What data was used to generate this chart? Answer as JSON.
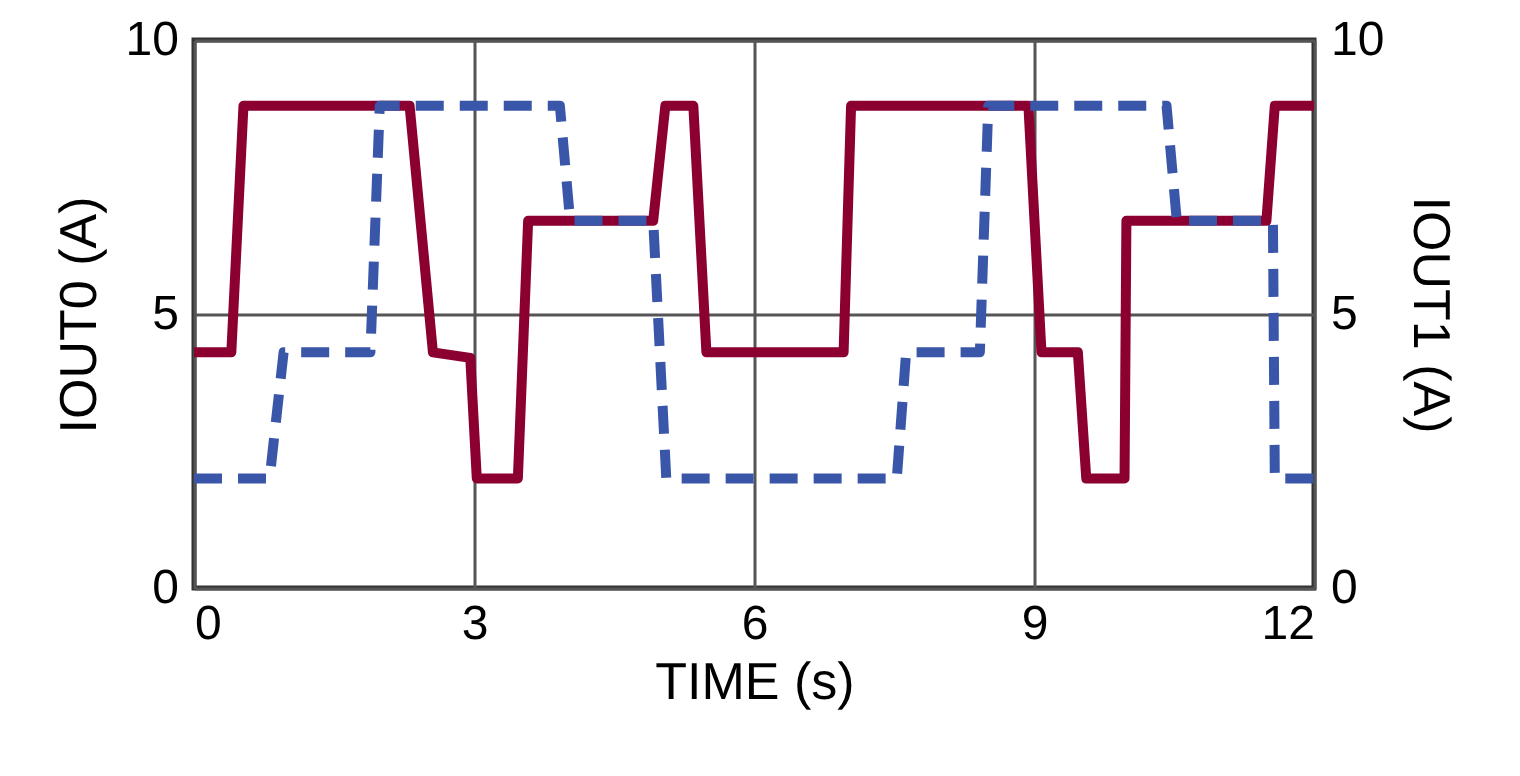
{
  "chart_data": {
    "type": "line",
    "xlabel": "TIME (s)",
    "ylabel": "IOUT0 (A)",
    "y2label": "IOUT1 (A)",
    "xlim": [
      0,
      12
    ],
    "xticks": [
      0,
      3,
      6,
      9,
      12
    ],
    "ylim": [
      0,
      10
    ],
    "yticks": [
      0,
      5,
      10
    ],
    "y2lim": [
      0,
      10
    ],
    "y2ticks": [
      0,
      5,
      10
    ],
    "grid": true,
    "series": [
      {
        "color": "#8b0030",
        "line_style": "solid",
        "x": [
          0,
          0.4,
          0.53,
          2.31,
          2.56,
          2.96,
          3.03,
          3.47,
          3.58,
          4.92,
          5.05,
          5.35,
          5.49,
          6.96,
          7.04,
          8.94,
          9.08,
          9.47,
          9.56,
          9.97,
          9.99,
          11.49,
          11.58,
          12
        ],
        "values": [
          4.3,
          4.3,
          8.8,
          8.8,
          4.3,
          4.2,
          2.0,
          2.0,
          6.7,
          6.7,
          8.8,
          8.8,
          4.3,
          4.3,
          8.8,
          8.8,
          4.3,
          4.3,
          2.0,
          2.0,
          6.7,
          6.7,
          8.8,
          8.8
        ]
      },
      {
        "color": "#3a56a8",
        "line_style": "dashed",
        "axis": "y2",
        "x": [
          0,
          0.81,
          0.96,
          1.89,
          1.99,
          3.92,
          4.03,
          4.92,
          5.06,
          7.53,
          7.63,
          8.42,
          8.51,
          10.42,
          10.53,
          11.56,
          11.58,
          12
        ],
        "values": [
          2.0,
          2.0,
          4.3,
          4.3,
          8.8,
          8.8,
          6.7,
          6.7,
          2.0,
          2.0,
          4.3,
          4.3,
          8.8,
          8.8,
          6.7,
          6.7,
          2.0,
          2.0
        ]
      }
    ]
  }
}
